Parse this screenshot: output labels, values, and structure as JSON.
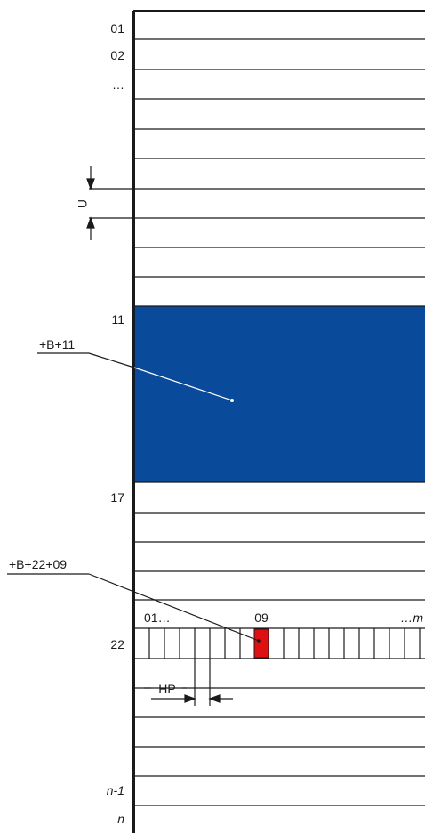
{
  "rack": {
    "row_labels": {
      "first": "01",
      "second": "02",
      "ellipsis": "…",
      "blue_start": "11",
      "blue_end": "17",
      "slot_row": "22",
      "second_last": "n-1",
      "last": "n"
    },
    "dimension_u": "U",
    "dimension_hp": "HP",
    "callout_module": "+B+11",
    "callout_slot": "+B+22+09",
    "slot_start": "01…",
    "slot_highlight": "09",
    "slot_end": "…m",
    "colors": {
      "module_fill": "#0a4a9a",
      "slot_highlight": "#e01010",
      "line": "#1a1a1a"
    }
  }
}
